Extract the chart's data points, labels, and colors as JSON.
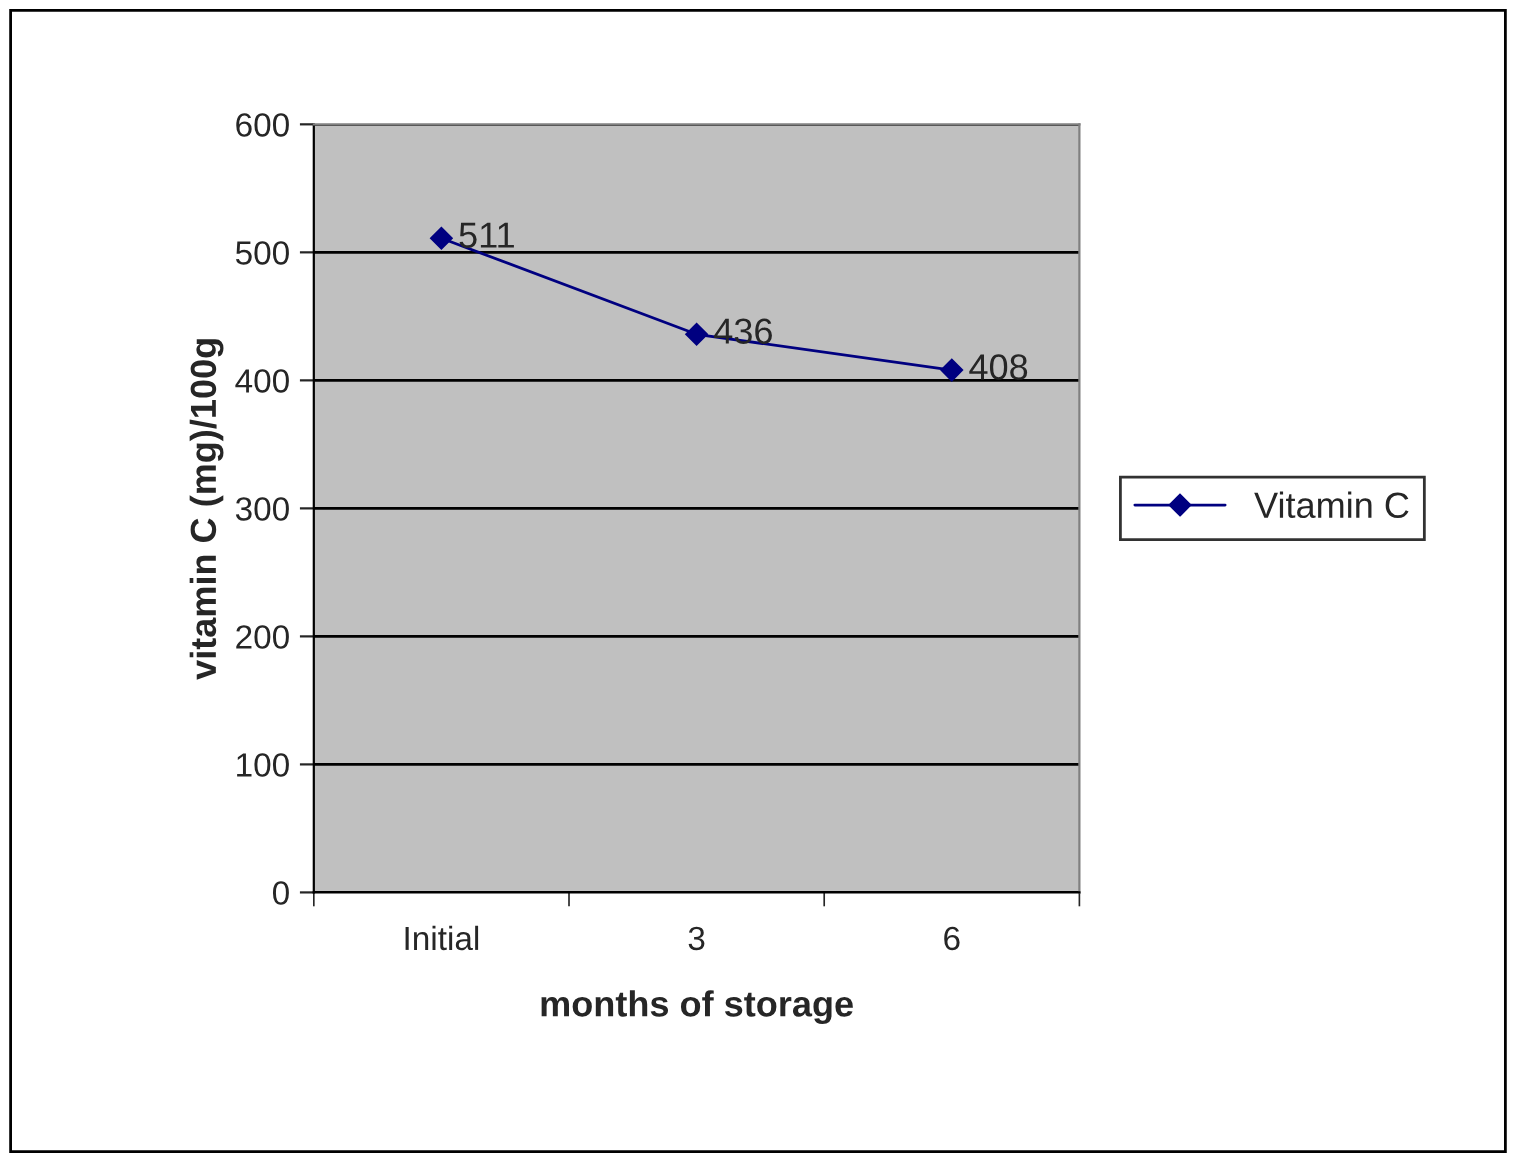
{
  "chart_data": {
    "type": "line",
    "xlabel": "months of storage",
    "ylabel": "vitamin C (mg)/100g",
    "categories": [
      "Initial",
      "3",
      "6"
    ],
    "series": [
      {
        "name": "Vitamin C",
        "color": "#000080",
        "values": [
          511,
          436,
          408
        ]
      }
    ],
    "ylim": [
      0,
      600
    ],
    "yticks": [
      0,
      100,
      200,
      300,
      400,
      500,
      600
    ],
    "grid": "y",
    "legend": "right",
    "marker": "diamond",
    "data_labels": true
  }
}
